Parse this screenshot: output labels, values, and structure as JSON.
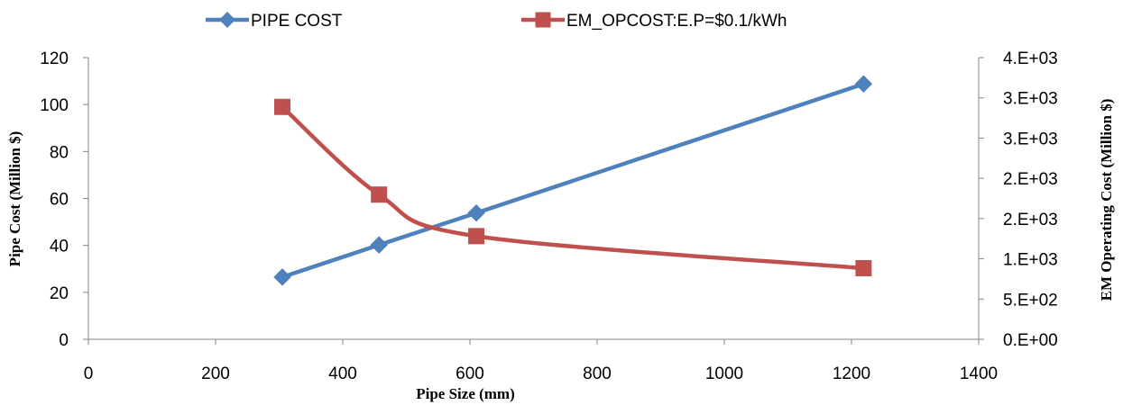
{
  "chart_data": {
    "type": "line",
    "x_axis": {
      "label": "Pipe  Size (mm)",
      "range": [
        0,
        1400
      ],
      "ticks": [
        "0",
        "200",
        "400",
        "600",
        "800",
        "1000",
        "1200",
        "1400"
      ]
    },
    "y_axis_left": {
      "label": "Pipe Cost (Million $)",
      "range": [
        0,
        120
      ],
      "ticks": [
        "0",
        "20",
        "40",
        "60",
        "80",
        "100",
        "120"
      ]
    },
    "y_axis_right": {
      "label": "EM Operating Cost (Million $)",
      "range": [
        0,
        4000
      ],
      "ticks": [
        "0.E+00",
        "5.E+02",
        "1.E+03",
        "2.E+03",
        "2.E+03",
        "3.E+03",
        "3.E+03",
        "4.E+03"
      ]
    },
    "series": [
      {
        "name": "PIPE COST",
        "axis": "left",
        "color": "#4F81BD",
        "marker": "diamond",
        "smooth": false,
        "points": [
          [
            305,
            26.5
          ],
          [
            457,
            40.2
          ],
          [
            610,
            53.8
          ],
          [
            1219,
            108.8
          ]
        ]
      },
      {
        "name": "EM_OPCOST:E.P=$0.1/kWh",
        "axis": "right",
        "color": "#C0504D",
        "marker": "square",
        "smooth": true,
        "points": [
          [
            305,
            3300
          ],
          [
            457,
            2055
          ],
          [
            610,
            1465
          ],
          [
            1219,
            1010
          ]
        ]
      }
    ],
    "legend_position": "top",
    "grid": false
  }
}
